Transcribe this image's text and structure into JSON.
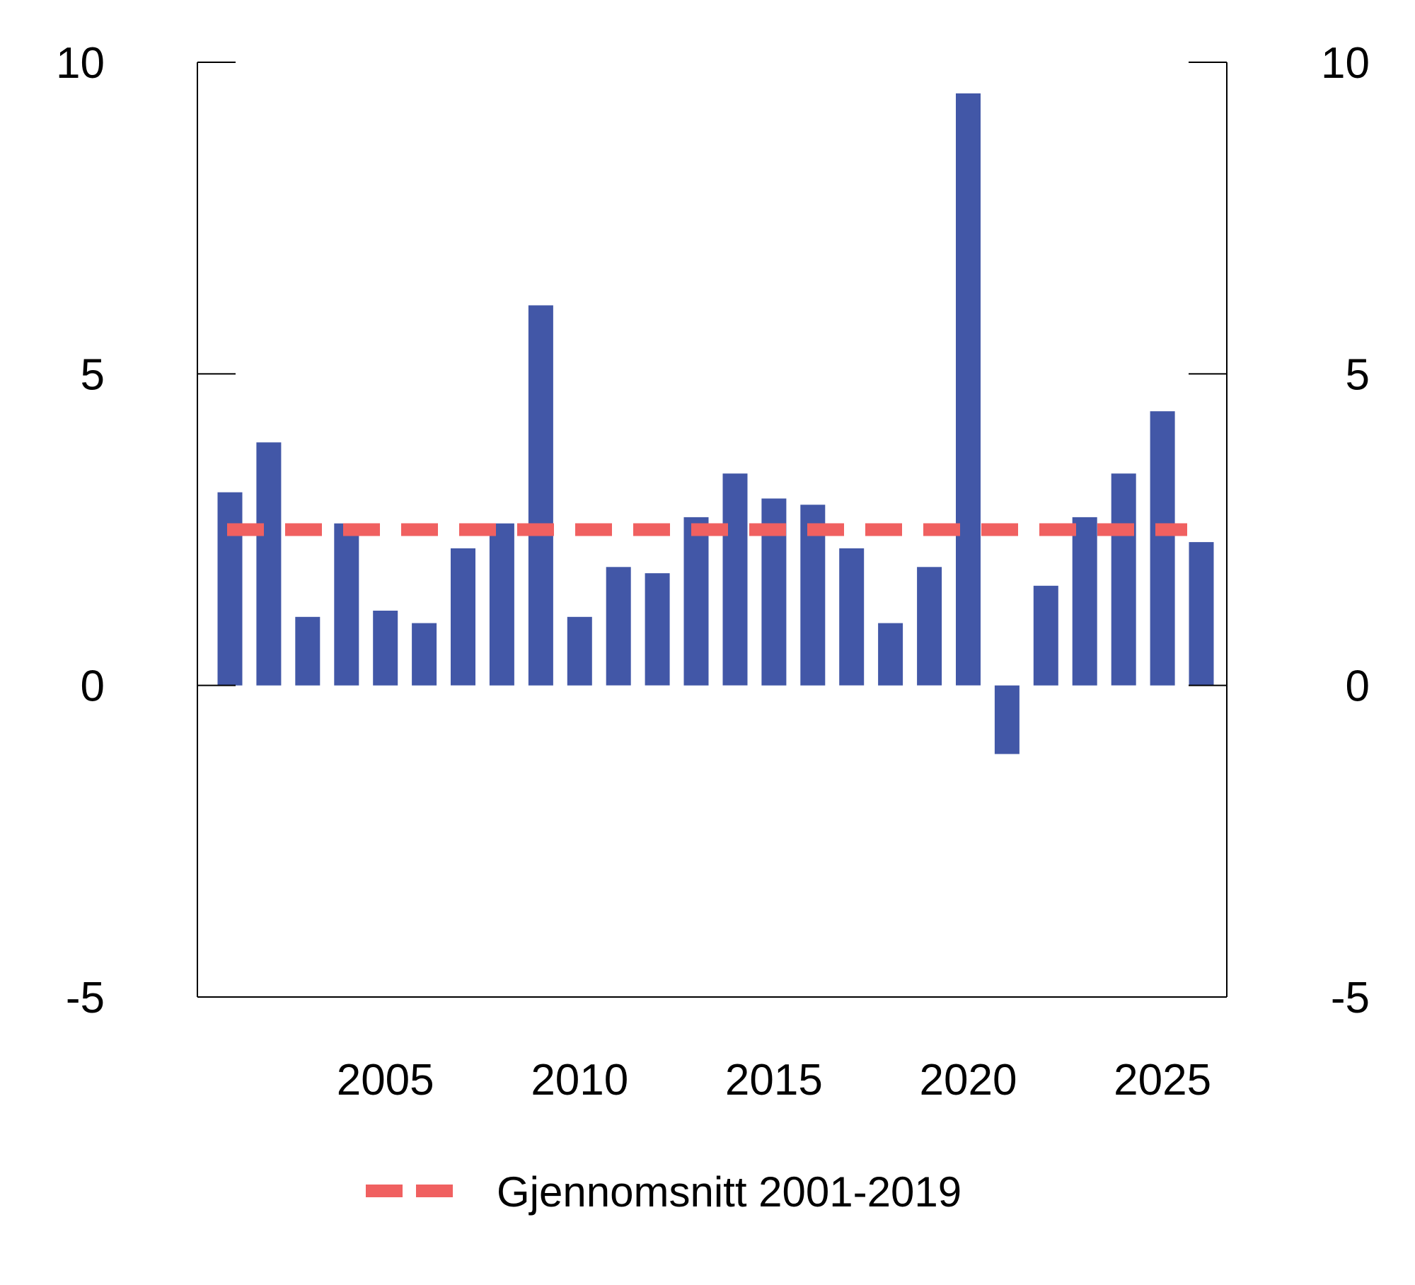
{
  "chart_data": {
    "type": "bar",
    "title": "",
    "xlabel": "",
    "ylabel": "",
    "ylim": [
      -5,
      10
    ],
    "yticks": [
      -5,
      0,
      5,
      10
    ],
    "xticks": [
      2005,
      2010,
      2015,
      2020,
      2025
    ],
    "grid": false,
    "legend_position": "bottom-center",
    "colors": {
      "bar": "#4257a7",
      "reference": "#f06060",
      "axis": "#000000"
    },
    "series": [
      {
        "x": [
          2001,
          2002,
          2003,
          2004,
          2005,
          2006,
          2007,
          2008,
          2009,
          2010,
          2011,
          2012,
          2013,
          2014,
          2015,
          2016,
          2017,
          2018,
          2019,
          2020,
          2021,
          2022,
          2023,
          2024,
          2025,
          2026
        ],
        "values": [
          3.1,
          3.9,
          1.1,
          2.6,
          1.2,
          1.0,
          2.2,
          2.6,
          6.1,
          1.1,
          1.9,
          1.8,
          2.7,
          3.4,
          3.0,
          2.9,
          2.2,
          1.0,
          1.9,
          9.5,
          -1.1,
          1.6,
          2.7,
          3.4,
          4.4,
          2.3
        ]
      }
    ],
    "reference_line": {
      "name": "Gjennomsnitt 2001-2019",
      "value": 2.5,
      "x_start": 2001,
      "x_end": 2026,
      "style": "dashed"
    }
  }
}
